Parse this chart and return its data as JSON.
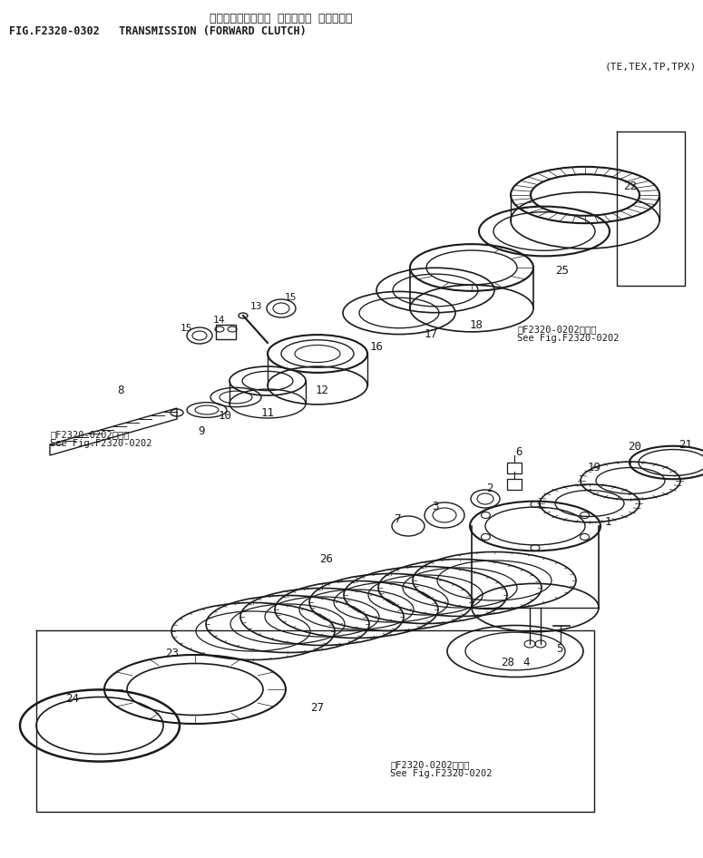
{
  "title_japanese": "トランスミッション （センシン クラッチ）",
  "title_line1": "FIG.F2320-0302   TRANSMISSION (FORWARD CLUTCH)",
  "subtitle": "(TE,TEX,TP,TPX)",
  "ref_ja": "第F2320-0202図参照",
  "ref_en": "See Fig.F2320-0202",
  "bg": "#ffffff",
  "lc": "#1a1a1a",
  "fig_w": 7.75,
  "fig_h": 9.46,
  "dpi": 100
}
